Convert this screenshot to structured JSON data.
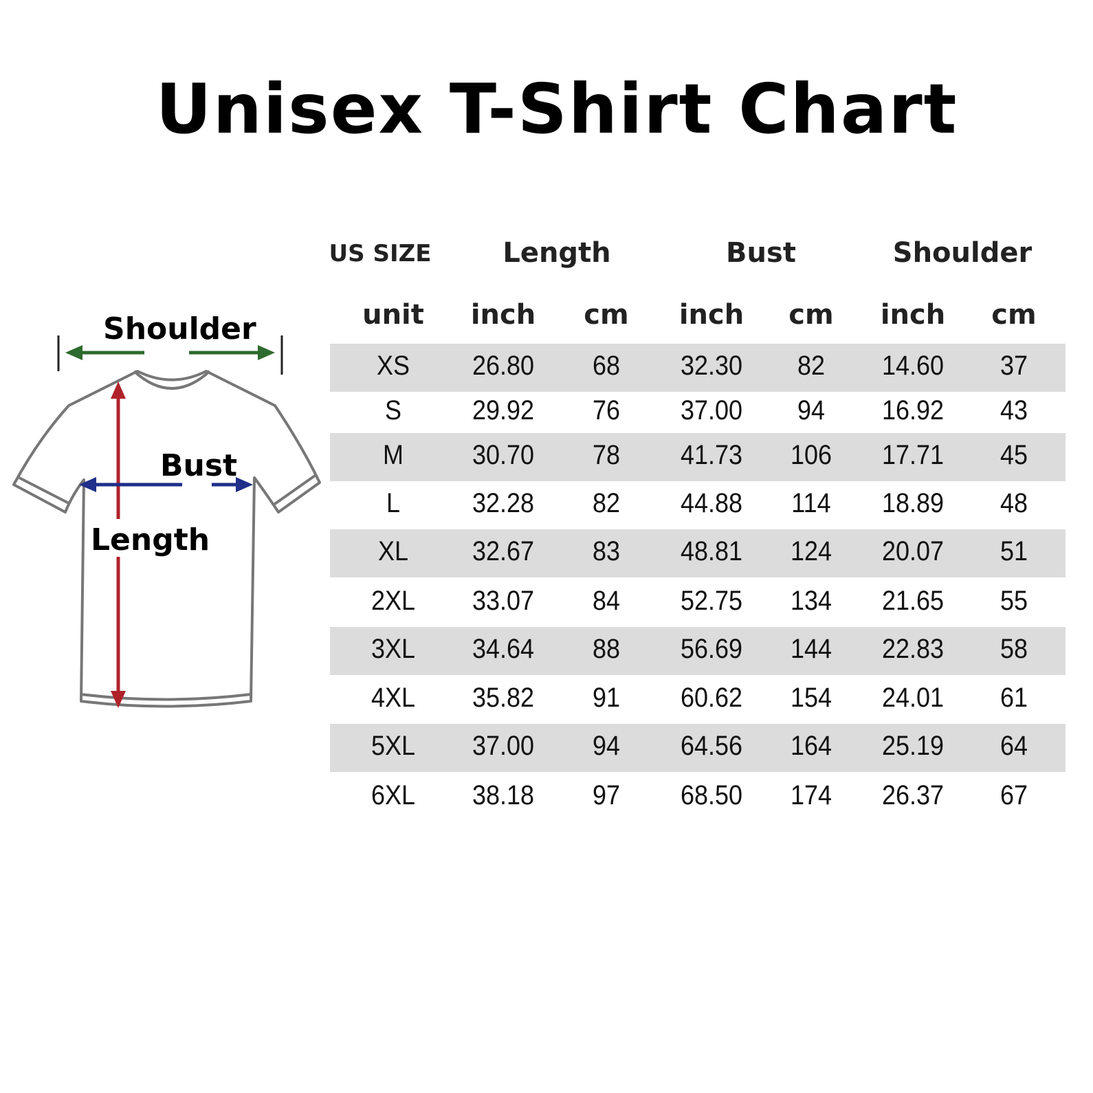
{
  "title": "Unisex T-Shirt Chart",
  "diagram": {
    "labels": {
      "shoulder": "Shoulder",
      "bust": "Bust",
      "length": "Length"
    },
    "colors": {
      "shoulder": "#2e6b2e",
      "bust": "#1f2f8a",
      "length": "#b0222a",
      "shirt_outline": "#777777"
    }
  },
  "chart_data": {
    "type": "table",
    "title": "Unisex T-Shirt Chart",
    "group_headers": [
      "US SIZE",
      "Length",
      "Bust",
      "Shoulder"
    ],
    "columns": [
      "unit",
      "inch",
      "cm",
      "inch",
      "cm",
      "inch",
      "cm"
    ],
    "rows": [
      [
        "XS",
        "26.80",
        "68",
        "32.30",
        "82",
        "14.60",
        "37"
      ],
      [
        "S",
        "29.92",
        "76",
        "37.00",
        "94",
        "16.92",
        "43"
      ],
      [
        "M",
        "30.70",
        "78",
        "41.73",
        "106",
        "17.71",
        "45"
      ],
      [
        "L",
        "32.28",
        "82",
        "44.88",
        "114",
        "18.89",
        "48"
      ],
      [
        "XL",
        "32.67",
        "83",
        "48.81",
        "124",
        "20.07",
        "51"
      ],
      [
        "2XL",
        "33.07",
        "84",
        "52.75",
        "134",
        "21.65",
        "55"
      ],
      [
        "3XL",
        "34.64",
        "88",
        "56.69",
        "144",
        "22.83",
        "58"
      ],
      [
        "4XL",
        "35.82",
        "91",
        "60.62",
        "154",
        "24.01",
        "61"
      ],
      [
        "5XL",
        "37.00",
        "94",
        "64.56",
        "164",
        "25.19",
        "64"
      ],
      [
        "6XL",
        "38.18",
        "97",
        "68.50",
        "174",
        "26.37",
        "67"
      ]
    ],
    "row_shading": "alternating",
    "shade_color": "#dcdcdc"
  }
}
